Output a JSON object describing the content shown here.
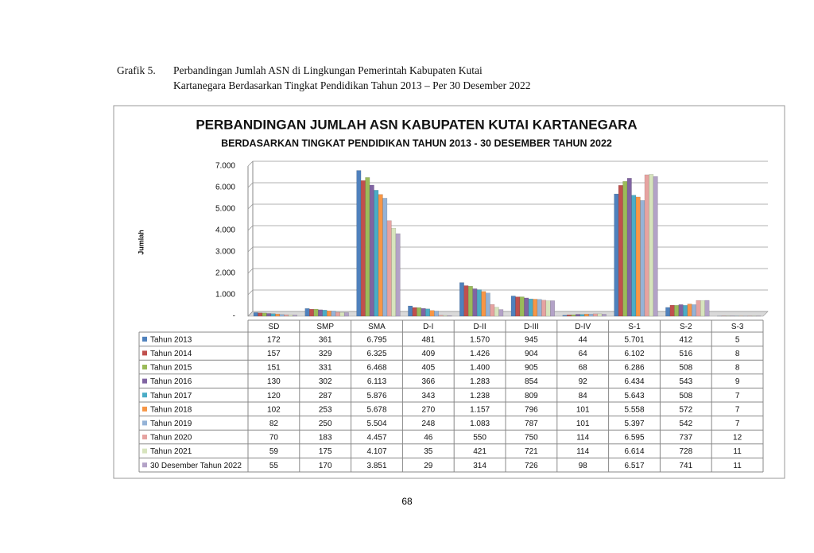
{
  "caption": {
    "label": "Grafik 5.",
    "lines": [
      "Perbandingan Jumlah ASN di Lingkungan Pemerintah Kabupaten Kutai",
      "Kartanegara Berdasarkan Tingkat Pendidikan Tahun 2013 – Per 30 Desember 2022"
    ]
  },
  "page_number": "68",
  "chart_data": {
    "type": "bar",
    "title": "PERBANDINGAN JUMLAH ASN KABUPATEN KUTAI KARTANEGARA",
    "subtitle": "BERDASARKAN TINGKAT PENDIDIKAN TAHUN 2013 - 30 DESEMBER TAHUN 2022",
    "y_label": "Jumlah",
    "categories": [
      "SD",
      "SMP",
      "SMA",
      "D-I",
      "D-II",
      "D-III",
      "D-IV",
      "S-1",
      "S-2",
      "S-3"
    ],
    "ylim": [
      0,
      7000
    ],
    "yticks": [
      {
        "value": 0,
        "label": "-"
      },
      {
        "value": 1000,
        "label": "1.000"
      },
      {
        "value": 2000,
        "label": "2.000"
      },
      {
        "value": 3000,
        "label": "3.000"
      },
      {
        "value": 4000,
        "label": "4.000"
      },
      {
        "value": 5000,
        "label": "5.000"
      },
      {
        "value": 6000,
        "label": "6.000"
      },
      {
        "value": 7000,
        "label": "7.000"
      }
    ],
    "grid": true,
    "series": [
      {
        "name": "Tahun 2013",
        "color": "#4f81bd",
        "values": [
          172,
          361,
          6795,
          481,
          1570,
          945,
          44,
          5701,
          412,
          5
        ],
        "value_labels": [
          "172",
          "361",
          "6.795",
          "481",
          "1.570",
          "945",
          "44",
          "5.701",
          "412",
          "5"
        ]
      },
      {
        "name": "Tahun 2014",
        "color": "#c0504d",
        "values": [
          157,
          329,
          6325,
          409,
          1426,
          904,
          64,
          6102,
          516,
          8
        ],
        "value_labels": [
          "157",
          "329",
          "6.325",
          "409",
          "1.426",
          "904",
          "64",
          "6.102",
          "516",
          "8"
        ]
      },
      {
        "name": "Tahun 2015",
        "color": "#9bbb59",
        "values": [
          151,
          331,
          6468,
          405,
          1400,
          905,
          68,
          6286,
          508,
          8
        ],
        "value_labels": [
          "151",
          "331",
          "6.468",
          "405",
          "1.400",
          "905",
          "68",
          "6.286",
          "508",
          "8"
        ]
      },
      {
        "name": "Tahun 2016",
        "color": "#8064a2",
        "values": [
          130,
          302,
          6113,
          366,
          1283,
          854,
          92,
          6434,
          543,
          9
        ],
        "value_labels": [
          "130",
          "302",
          "6.113",
          "366",
          "1.283",
          "854",
          "92",
          "6.434",
          "543",
          "9"
        ]
      },
      {
        "name": "Tahun 2017",
        "color": "#4bacc6",
        "values": [
          120,
          287,
          5876,
          343,
          1238,
          809,
          84,
          5643,
          508,
          7
        ],
        "value_labels": [
          "120",
          "287",
          "5.876",
          "343",
          "1.238",
          "809",
          "84",
          "5.643",
          "508",
          "7"
        ]
      },
      {
        "name": "Tahun 2018",
        "color": "#f79646",
        "values": [
          102,
          253,
          5678,
          270,
          1157,
          796,
          101,
          5558,
          572,
          7
        ],
        "value_labels": [
          "102",
          "253",
          "5.678",
          "270",
          "1.157",
          "796",
          "101",
          "5.558",
          "572",
          "7"
        ]
      },
      {
        "name": "Tahun 2019",
        "color": "#95b3d7",
        "values": [
          82,
          250,
          5504,
          248,
          1083,
          787,
          101,
          5397,
          542,
          7
        ],
        "value_labels": [
          "82",
          "250",
          "5.504",
          "248",
          "1.083",
          "787",
          "101",
          "5.397",
          "542",
          "7"
        ]
      },
      {
        "name": "Tahun 2020",
        "color": "#e6a3a1",
        "values": [
          70,
          183,
          4457,
          46,
          550,
          750,
          114,
          6595,
          737,
          12
        ],
        "value_labels": [
          "70",
          "183",
          "4.457",
          "46",
          "550",
          "750",
          "114",
          "6.595",
          "737",
          "12"
        ]
      },
      {
        "name": "Tahun 2021",
        "color": "#d7e4bd",
        "values": [
          59,
          175,
          4107,
          35,
          421,
          721,
          114,
          6614,
          728,
          11
        ],
        "value_labels": [
          "59",
          "175",
          "4.107",
          "35",
          "421",
          "721",
          "114",
          "6.614",
          "728",
          "11"
        ]
      },
      {
        "name": "30 Desember Tahun 2022",
        "color": "#b3a2c7",
        "values": [
          55,
          170,
          3851,
          29,
          314,
          726,
          98,
          6517,
          741,
          11
        ],
        "value_labels": [
          "55",
          "170",
          "3.851",
          "29",
          "314",
          "726",
          "98",
          "6.517",
          "741",
          "11"
        ]
      }
    ]
  }
}
